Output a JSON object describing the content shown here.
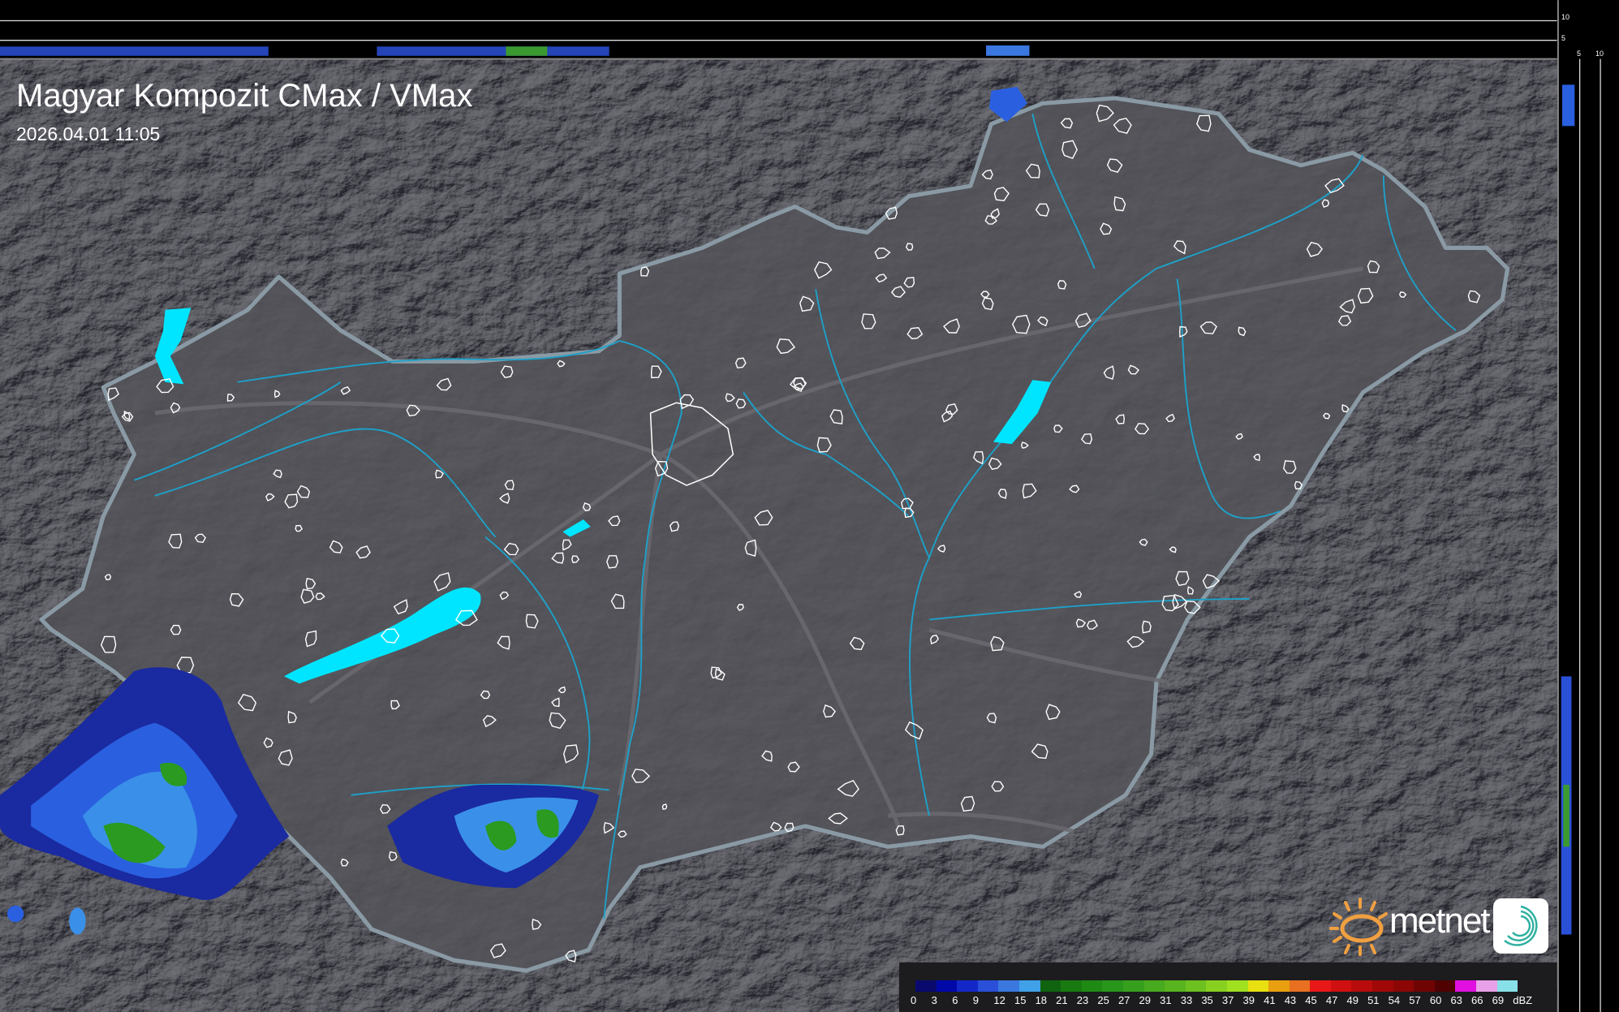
{
  "title": "Magyar Kompozit CMax / VMax",
  "timestamp": "2026.04.01 11:05",
  "side_axis": {
    "top_ticks": [
      "10",
      "5"
    ],
    "right_ticks": [
      "5",
      "10"
    ]
  },
  "legend": {
    "unit": "dBZ",
    "labels": [
      "0",
      "3",
      "6",
      "9",
      "12",
      "15",
      "18",
      "21",
      "23",
      "25",
      "27",
      "29",
      "31",
      "33",
      "35",
      "37",
      "39",
      "41",
      "43",
      "45",
      "47",
      "49",
      "51",
      "54",
      "57",
      "60",
      "63",
      "66",
      "69"
    ],
    "colors": [
      "#0a0a6e",
      "#0008a8",
      "#1428c8",
      "#2a4fd8",
      "#3a78e0",
      "#40a0e8",
      "#106410",
      "#187a10",
      "#1e8a14",
      "#28961a",
      "#36a01e",
      "#48aa1e",
      "#58b41e",
      "#6cc020",
      "#88d020",
      "#a0e020",
      "#e8e010",
      "#e8a010",
      "#e87020",
      "#e81818",
      "#d01010",
      "#b80c0c",
      "#a00808",
      "#8c0606",
      "#700404",
      "#500202",
      "#e010e0",
      "#e8a0e8",
      "#88e0e8"
    ]
  },
  "logo": {
    "brand": "metnet",
    "sun_color": "#f0a040",
    "swirl_color": "#30b0a0"
  },
  "colors": {
    "background": "#2e2e30",
    "country_fill": "#3a3a3e",
    "border": "#8a9aa4",
    "rivers": "#1ea0c8",
    "lakes": "#00e5ff",
    "towns": "#ffffff"
  }
}
